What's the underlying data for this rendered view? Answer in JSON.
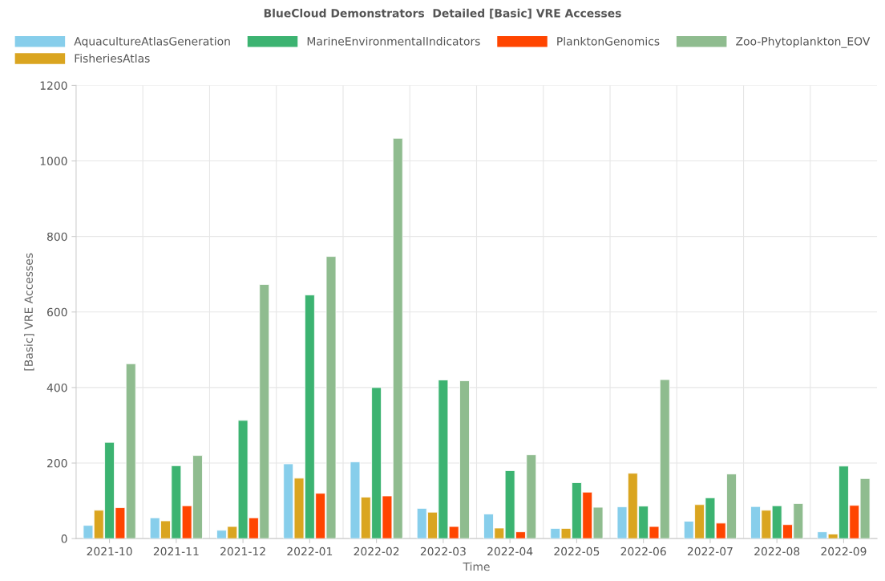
{
  "chart_data": {
    "type": "bar",
    "title": "BlueCloud Demonstrators  Detailed [Basic] VRE Accesses",
    "xlabel": "Time",
    "ylabel": "[Basic] VRE Accesses",
    "categories": [
      "2021-10",
      "2021-11",
      "2021-12",
      "2022-01",
      "2022-02",
      "2022-03",
      "2022-04",
      "2022-05",
      "2022-06",
      "2022-07",
      "2022-08",
      "2022-09"
    ],
    "series": [
      {
        "name": "AquacultureAtlasGeneration",
        "color": "#87ceeb",
        "values": [
          35,
          55,
          22,
          198,
          203,
          80,
          65,
          27,
          84,
          46,
          85,
          18
        ]
      },
      {
        "name": "FisheriesAtlas",
        "color": "#daa520",
        "values": [
          75,
          47,
          32,
          160,
          110,
          70,
          28,
          27,
          173,
          90,
          75,
          12
        ]
      },
      {
        "name": "MarineEnvironmentalIndicators",
        "color": "#3cb371",
        "values": [
          255,
          193,
          313,
          645,
          400,
          420,
          180,
          148,
          86,
          108,
          87,
          192
        ]
      },
      {
        "name": "PlanktonGenomics",
        "color": "#ff4500",
        "values": [
          82,
          87,
          55,
          120,
          113,
          32,
          18,
          123,
          32,
          41,
          37,
          88
        ]
      },
      {
        "name": "Zoo-Phytoplankton_EOV",
        "color": "#8fbc8f",
        "values": [
          463,
          220,
          673,
          747,
          1060,
          418,
          222,
          83,
          421,
          171,
          93,
          159
        ]
      }
    ],
    "ylim": [
      0,
      1200
    ],
    "yticks": [
      0,
      200,
      400,
      600,
      800,
      1000,
      1200
    ],
    "grid": true,
    "legend": "top"
  }
}
